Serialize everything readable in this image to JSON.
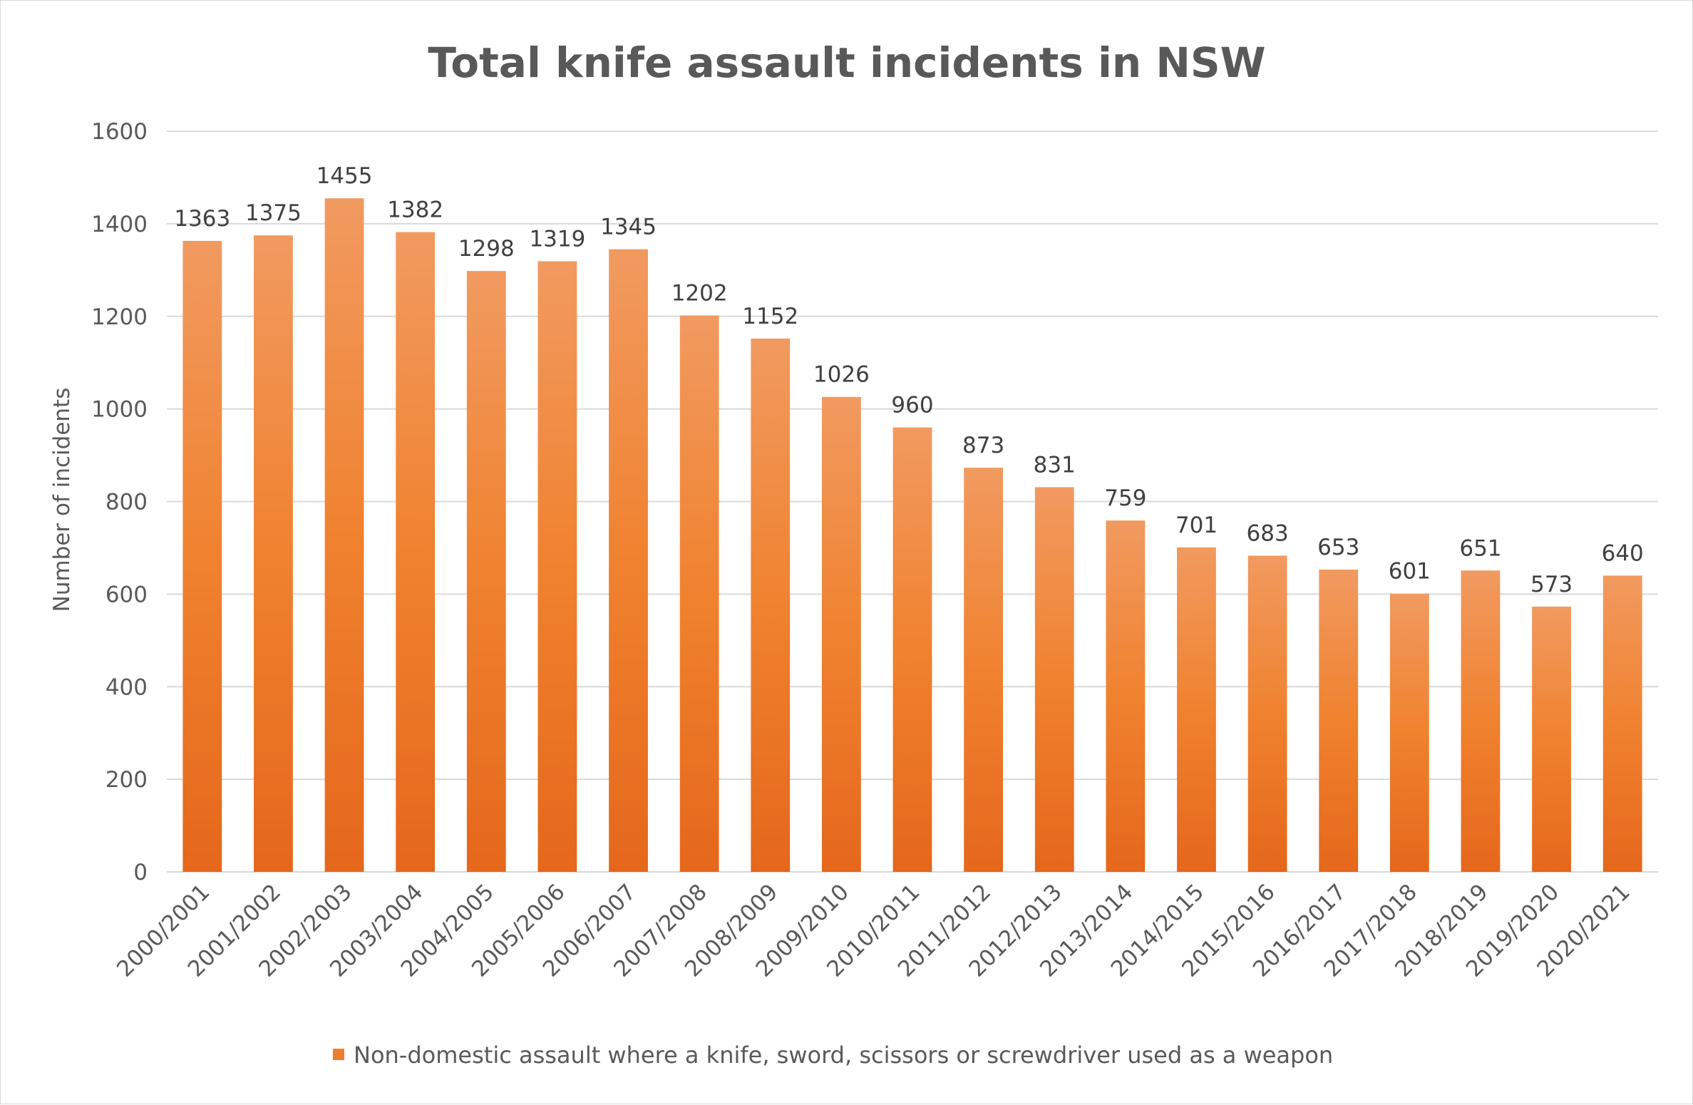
{
  "chart_data": {
    "type": "bar",
    "title": "Total knife assault incidents in NSW",
    "ylabel": "Number of incidents",
    "xlabel": "",
    "ylim": [
      0,
      1600
    ],
    "yticks": [
      0,
      200,
      400,
      600,
      800,
      1000,
      1200,
      1400,
      1600
    ],
    "grid": true,
    "legend_position": "bottom",
    "categories": [
      "2000/2001",
      "2001/2002",
      "2002/2003",
      "2003/2004",
      "2004/2005",
      "2005/2006",
      "2006/2007",
      "2007/2008",
      "2008/2009",
      "2009/2010",
      "2010/2011",
      "2011/2012",
      "2012/2013",
      "2013/2014",
      "2014/2015",
      "2015/2016",
      "2016/2017",
      "2017/2018",
      "2018/2019",
      "2019/2020",
      "2020/2021"
    ],
    "series": [
      {
        "name": "Non-domestic assault where a knife, sword, scissors or screwdriver used as a weapon",
        "color": "#ed7d31",
        "values": [
          1363,
          1375,
          1455,
          1382,
          1298,
          1319,
          1345,
          1202,
          1152,
          1026,
          960,
          873,
          831,
          759,
          701,
          683,
          653,
          601,
          651,
          573,
          640
        ]
      }
    ]
  }
}
